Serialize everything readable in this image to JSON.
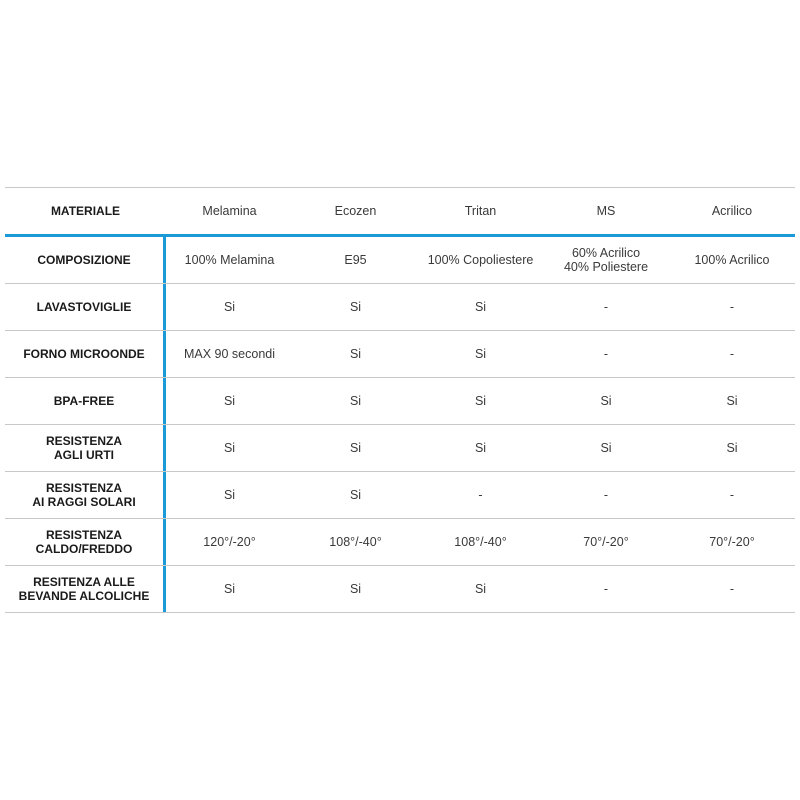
{
  "accent_color": "#1a9ad6",
  "header": {
    "label": "MATERIALE",
    "columns": [
      "Melamina",
      "Ecozen",
      "Tritan",
      "MS",
      "Acrilico"
    ]
  },
  "rows": [
    {
      "label": "COMPOSIZIONE",
      "values": [
        "100% Melamina",
        "E95",
        "100% Copoliestere",
        "60% Acrilico\n40% Poliestere",
        "100% Acrilico"
      ]
    },
    {
      "label": "LAVASTOVIGLIE",
      "values": [
        "Si",
        "Si",
        "Si",
        "-",
        "-"
      ]
    },
    {
      "label": "FORNO MICROONDE",
      "values": [
        "MAX 90 secondi",
        "Si",
        "Si",
        "-",
        "-"
      ]
    },
    {
      "label": "BPA-FREE",
      "values": [
        "Si",
        "Si",
        "Si",
        "Si",
        "Si"
      ]
    },
    {
      "label": "RESISTENZA\nAGLI URTI",
      "values": [
        "Si",
        "Si",
        "Si",
        "Si",
        "Si"
      ]
    },
    {
      "label": "RESISTENZA\nAI RAGGI SOLARI",
      "values": [
        "Si",
        "Si",
        "-",
        "-",
        "-"
      ]
    },
    {
      "label": "RESISTENZA\nCALDO/FREDDO",
      "values": [
        "120°/-20°",
        "108°/-40°",
        "108°/-40°",
        "70°/-20°",
        "70°/-20°"
      ]
    },
    {
      "label": "RESITENZA ALLE\nBEVANDE ALCOLICHE",
      "values": [
        "Si",
        "Si",
        "Si",
        "-",
        "-"
      ]
    }
  ]
}
